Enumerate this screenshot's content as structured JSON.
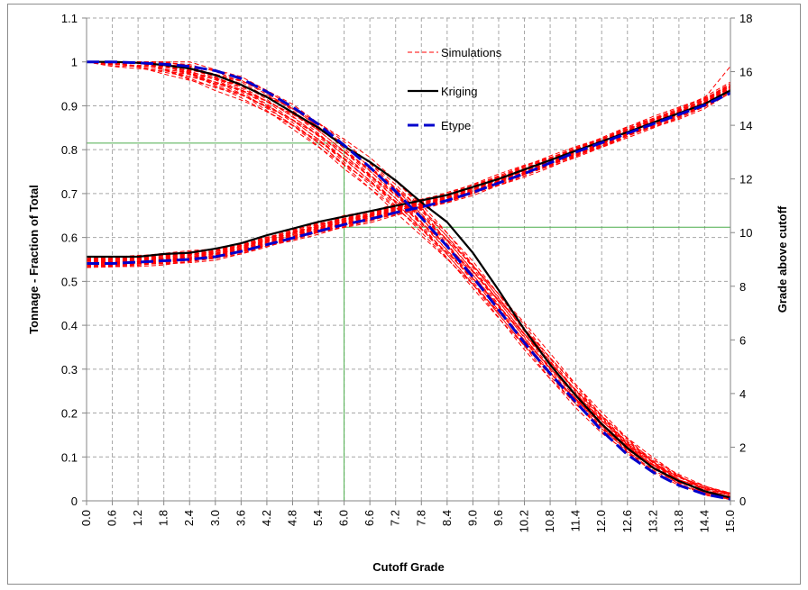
{
  "chart_data": {
    "type": "line",
    "xlabel": "Cutoff Grade",
    "ylabel": "Tonnage - Fraction of Total",
    "y2label": "Grade above cutoff",
    "xlim": [
      0,
      15
    ],
    "ylim": [
      0,
      1.1
    ],
    "y2lim": [
      0,
      18
    ],
    "x_ticks": [
      "0.0",
      "0.6",
      "1.2",
      "1.8",
      "2.4",
      "3.0",
      "3.6",
      "4.2",
      "4.8",
      "5.4",
      "6.0",
      "6.6",
      "7.2",
      "7.8",
      "8.4",
      "9.0",
      "9.6",
      "10.2",
      "10.8",
      "11.4",
      "12.0",
      "12.6",
      "13.2",
      "13.8",
      "14.4",
      "15.0"
    ],
    "y_ticks": [
      "0",
      "0.1",
      "0.2",
      "0.3",
      "0.4",
      "0.5",
      "0.6",
      "0.7",
      "0.8",
      "0.9",
      "1",
      "1.1"
    ],
    "y2_ticks": [
      "0",
      "2",
      "4",
      "6",
      "8",
      "10",
      "12",
      "14",
      "16",
      "18"
    ],
    "grid": true,
    "legend_position": "top-center",
    "legend": [
      {
        "name": "Simulations",
        "color": "#ff0000",
        "style": "dashed-thin"
      },
      {
        "name": "Kriging",
        "color": "#000000",
        "style": "solid-thick"
      },
      {
        "name": "Etype",
        "color": "#0000cc",
        "style": "dashed-thick"
      }
    ],
    "x": [
      0,
      0.6,
      1.2,
      1.8,
      2.4,
      3.0,
      3.6,
      4.2,
      4.8,
      5.4,
      6.0,
      6.6,
      7.2,
      7.8,
      8.4,
      9.0,
      9.6,
      10.2,
      10.8,
      11.4,
      12.0,
      12.6,
      13.2,
      13.8,
      14.4,
      15.0
    ],
    "series": [
      {
        "name": "Kriging",
        "axis": "left",
        "quantity": "tonnage",
        "values": [
          1.0,
          1.0,
          0.998,
          0.993,
          0.985,
          0.97,
          0.948,
          0.92,
          0.885,
          0.85,
          0.808,
          0.772,
          0.73,
          0.68,
          0.635,
          0.565,
          0.48,
          0.39,
          0.31,
          0.24,
          0.175,
          0.12,
          0.075,
          0.045,
          0.022,
          0.007
        ]
      },
      {
        "name": "Kriging",
        "axis": "right",
        "quantity": "grade",
        "values": [
          9.1,
          9.1,
          9.1,
          9.2,
          9.25,
          9.4,
          9.6,
          9.9,
          10.15,
          10.4,
          10.6,
          10.8,
          11.0,
          11.2,
          11.4,
          11.7,
          12.0,
          12.35,
          12.7,
          13.05,
          13.4,
          13.75,
          14.1,
          14.45,
          14.8,
          15.3
        ]
      },
      {
        "name": "Etype",
        "axis": "left",
        "quantity": "tonnage",
        "values": [
          1.0,
          1.0,
          0.998,
          0.995,
          0.99,
          0.98,
          0.962,
          0.932,
          0.897,
          0.858,
          0.81,
          0.76,
          0.705,
          0.645,
          0.58,
          0.51,
          0.435,
          0.36,
          0.29,
          0.225,
          0.16,
          0.105,
          0.065,
          0.035,
          0.015,
          0.004
        ]
      },
      {
        "name": "Etype",
        "axis": "right",
        "quantity": "grade",
        "values": [
          8.85,
          8.85,
          8.9,
          8.95,
          9.0,
          9.1,
          9.3,
          9.55,
          9.8,
          10.05,
          10.3,
          10.5,
          10.75,
          10.95,
          11.2,
          11.5,
          11.85,
          12.2,
          12.6,
          13.0,
          13.35,
          13.7,
          14.05,
          14.4,
          14.75,
          15.2
        ]
      }
    ],
    "simulation_tonnage_values": [
      1.0,
      1.0,
      0.998,
      0.99,
      0.978,
      0.96,
      0.94,
      0.91,
      0.875,
      0.835,
      0.79,
      0.745,
      0.695,
      0.64,
      0.58,
      0.515,
      0.445,
      0.375,
      0.305,
      0.24,
      0.178,
      0.125,
      0.082,
      0.048,
      0.024,
      0.01
    ],
    "simulation_grade_values": [
      8.9,
      8.9,
      8.95,
      9.0,
      9.1,
      9.2,
      9.4,
      9.65,
      9.9,
      10.15,
      10.4,
      10.6,
      10.85,
      11.05,
      11.3,
      11.6,
      11.95,
      12.3,
      12.65,
      13.0,
      13.35,
      13.75,
      14.1,
      14.45,
      14.85,
      15.4
    ],
    "reference_lines": {
      "vertical_x": 6.0,
      "horizontal_left_y": 0.815,
      "horizontal_right_y": 10.2,
      "color": "#4cae4c"
    },
    "colors": {
      "simulations": "#ff0000",
      "kriging": "#000000",
      "etype": "#0000cc",
      "grid": "#a6a6a6",
      "reference": "#4cae4c"
    }
  }
}
